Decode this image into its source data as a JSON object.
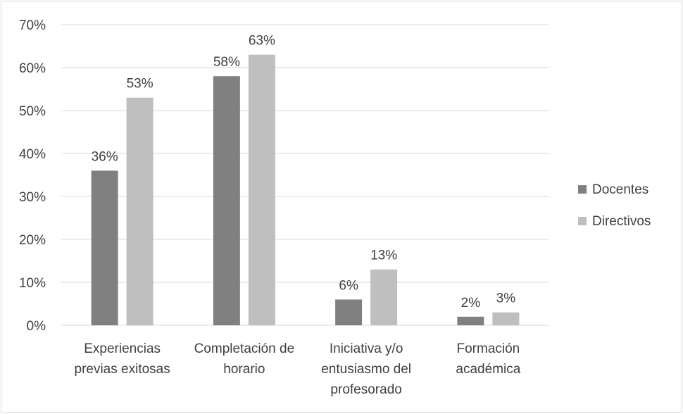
{
  "chart_data": {
    "type": "bar",
    "categories": [
      [
        "Experiencias",
        "previas exitosas"
      ],
      [
        "Completación de",
        "horario"
      ],
      [
        "Iniciativa y/o",
        "entusiasmo del",
        "profesorado"
      ],
      [
        "Formación",
        "académica"
      ]
    ],
    "series": [
      {
        "name": "Docentes",
        "values": [
          36,
          58,
          6,
          2
        ],
        "labels": [
          "36%",
          "58%",
          "6%",
          "2%"
        ],
        "color": "#808080"
      },
      {
        "name": "Directivos",
        "values": [
          53,
          63,
          13,
          3
        ],
        "labels": [
          "53%",
          "63%",
          "13%",
          "3%"
        ],
        "color": "#bfbfbf"
      }
    ],
    "ylim": [
      0,
      70
    ],
    "yticks": [
      0,
      10,
      20,
      30,
      40,
      50,
      60,
      70
    ],
    "ytick_labels": [
      "0%",
      "10%",
      "20%",
      "30%",
      "40%",
      "50%",
      "60%",
      "70%"
    ],
    "grid": true,
    "legend_position": "right",
    "title": "",
    "xlabel": "",
    "ylabel": ""
  }
}
